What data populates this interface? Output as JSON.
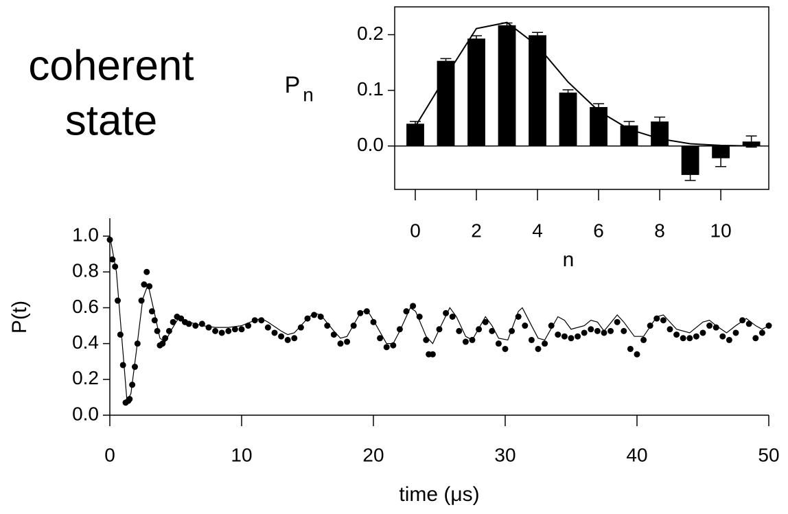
{
  "chart_data": [
    {
      "type": "scatter",
      "xlabel": "time (μs)",
      "ylabel": "P(t)",
      "annotations": [
        "coherent",
        "state"
      ],
      "xlim": [
        0,
        50
      ],
      "ylim": [
        0,
        1.1
      ],
      "xticks": [
        0,
        10,
        20,
        30,
        40,
        50
      ],
      "yticks": [
        {
          "value": 0,
          "label": "0.0"
        },
        0.2,
        0.4,
        0.6,
        0.8,
        {
          "value": 1,
          "label": "1.0"
        }
      ],
      "series": [
        {
          "type": "scatter",
          "color": "#000000",
          "x": [
            0,
            0.2,
            0.4,
            0.6,
            0.8,
            1.0,
            1.2,
            1.4,
            1.5,
            1.7,
            1.9,
            2.1,
            2.4,
            2.6,
            2.8,
            3.0,
            3.2,
            3.4,
            3.6,
            3.8,
            4.0,
            4.2,
            4.5,
            4.8,
            5.1,
            5.4,
            5.7,
            6.0,
            6.5,
            7.0,
            7.5,
            8.0,
            8.5,
            9.0,
            9.5,
            10,
            10.5,
            11,
            11.5,
            12,
            12.5,
            13,
            13.5,
            14,
            14.5,
            15,
            15.5,
            16,
            16.5,
            17,
            17.5,
            18,
            18.5,
            19,
            19.5,
            20,
            20.5,
            21,
            21.5,
            22,
            22.5,
            23,
            23.5,
            24,
            24.2,
            24.5,
            25,
            25.5,
            26,
            26.5,
            27,
            27.5,
            28,
            28.5,
            29,
            29.5,
            30,
            30.5,
            31,
            31.5,
            32,
            32.5,
            33,
            33.5,
            34,
            34.5,
            35,
            35.5,
            36,
            36.5,
            37,
            37.5,
            38,
            38.5,
            39,
            39.5,
            40,
            40.5,
            41,
            41.5,
            42,
            42.5,
            43,
            43.5,
            44,
            44.5,
            45,
            45.5,
            46,
            46.5,
            47,
            47.5,
            48,
            48.5,
            49,
            49.5,
            50
          ],
          "values": [
            0.98,
            0.87,
            0.83,
            0.64,
            0.45,
            0.28,
            0.07,
            0.08,
            0.09,
            0.17,
            0.27,
            0.4,
            0.64,
            0.73,
            0.8,
            0.72,
            0.58,
            0.53,
            0.47,
            0.39,
            0.4,
            0.43,
            0.47,
            0.52,
            0.55,
            0.54,
            0.52,
            0.51,
            0.5,
            0.51,
            0.49,
            0.47,
            0.46,
            0.47,
            0.48,
            0.48,
            0.5,
            0.53,
            0.53,
            0.49,
            0.46,
            0.44,
            0.42,
            0.43,
            0.49,
            0.54,
            0.56,
            0.55,
            0.5,
            0.45,
            0.4,
            0.41,
            0.5,
            0.57,
            0.58,
            0.52,
            0.43,
            0.38,
            0.39,
            0.48,
            0.58,
            0.61,
            0.55,
            0.42,
            0.34,
            0.34,
            0.48,
            0.57,
            0.55,
            0.47,
            0.41,
            0.42,
            0.48,
            0.52,
            0.47,
            0.4,
            0.37,
            0.47,
            0.55,
            0.5,
            0.42,
            0.37,
            0.4,
            0.5,
            0.45,
            0.44,
            0.43,
            0.44,
            0.46,
            0.48,
            0.47,
            0.46,
            0.47,
            0.52,
            0.47,
            0.37,
            0.34,
            0.42,
            0.5,
            0.54,
            0.53,
            0.48,
            0.45,
            0.43,
            0.43,
            0.44,
            0.46,
            0.5,
            0.49,
            0.44,
            0.42,
            0.46,
            0.53,
            0.51,
            0.43,
            0.46,
            0.5
          ]
        },
        {
          "type": "line",
          "color": "#000000",
          "x": [
            0,
            0.5,
            1.0,
            1.3,
            1.6,
            2.0,
            2.5,
            2.9,
            3.3,
            3.8,
            4.2,
            4.7,
            5.2,
            6,
            7,
            8,
            9,
            10,
            11,
            11.5,
            12,
            13,
            13.5,
            14,
            15,
            15.5,
            16,
            17,
            17.5,
            18,
            19,
            19.5,
            20,
            21,
            21.5,
            22,
            22.8,
            23.2,
            24,
            24.5,
            25,
            25.8,
            26.3,
            27,
            27.5,
            28.5,
            29,
            29.5,
            30.2,
            31,
            31.3,
            32,
            32.5,
            33,
            34,
            34.5,
            35,
            36,
            36.5,
            37,
            37.5,
            38.5,
            39,
            39.8,
            40.5,
            41.5,
            42,
            43,
            44,
            45,
            45.5,
            46,
            46.8,
            47.5,
            48.3,
            49,
            49.5,
            50
          ],
          "values": [
            1.0,
            0.8,
            0.35,
            0.08,
            0.12,
            0.35,
            0.65,
            0.73,
            0.6,
            0.43,
            0.41,
            0.48,
            0.54,
            0.52,
            0.5,
            0.49,
            0.49,
            0.5,
            0.53,
            0.54,
            0.52,
            0.47,
            0.45,
            0.46,
            0.54,
            0.57,
            0.56,
            0.47,
            0.43,
            0.44,
            0.57,
            0.59,
            0.53,
            0.4,
            0.4,
            0.47,
            0.6,
            0.58,
            0.44,
            0.4,
            0.48,
            0.6,
            0.55,
            0.44,
            0.42,
            0.55,
            0.5,
            0.43,
            0.42,
            0.58,
            0.6,
            0.5,
            0.43,
            0.42,
            0.55,
            0.53,
            0.48,
            0.5,
            0.53,
            0.52,
            0.47,
            0.56,
            0.52,
            0.44,
            0.44,
            0.55,
            0.56,
            0.48,
            0.46,
            0.52,
            0.53,
            0.5,
            0.46,
            0.5,
            0.54,
            0.5,
            0.48,
            0.5
          ]
        }
      ]
    },
    {
      "type": "bar",
      "xlabel": "n",
      "ylabel": "P",
      "ylabel_sub": "n",
      "frame": true,
      "zero_line": true,
      "xlim": [
        -0.674,
        11.57
      ],
      "ylim": [
        -0.078,
        0.25
      ],
      "xticks": [
        0,
        2,
        4,
        6,
        8,
        10
      ],
      "yticks": [
        {
          "value": 0,
          "label": "0.0"
        },
        0.1,
        0.2
      ],
      "series": [
        {
          "type": "bar",
          "color": "#000000",
          "x": [
            0,
            1,
            2,
            3,
            4,
            5,
            6,
            7,
            8,
            9,
            10,
            11
          ],
          "values": [
            0.04,
            0.153,
            0.193,
            0.217,
            0.199,
            0.096,
            0.07,
            0.037,
            0.044,
            -0.052,
            -0.022,
            0.008
          ],
          "errors": [
            0.004,
            0.004,
            0.005,
            0.004,
            0.005,
            0.005,
            0.006,
            0.007,
            0.008,
            0.01,
            0.015,
            0.01
          ]
        },
        {
          "type": "line",
          "color": "#000000",
          "x": [
            0,
            1,
            2,
            3,
            4,
            5,
            6,
            7,
            8,
            9,
            10,
            11
          ],
          "values": [
            0.035,
            0.125,
            0.211,
            0.222,
            0.18,
            0.115,
            0.063,
            0.03,
            0.013,
            0.004,
            0.001,
            0.0
          ]
        }
      ]
    }
  ]
}
